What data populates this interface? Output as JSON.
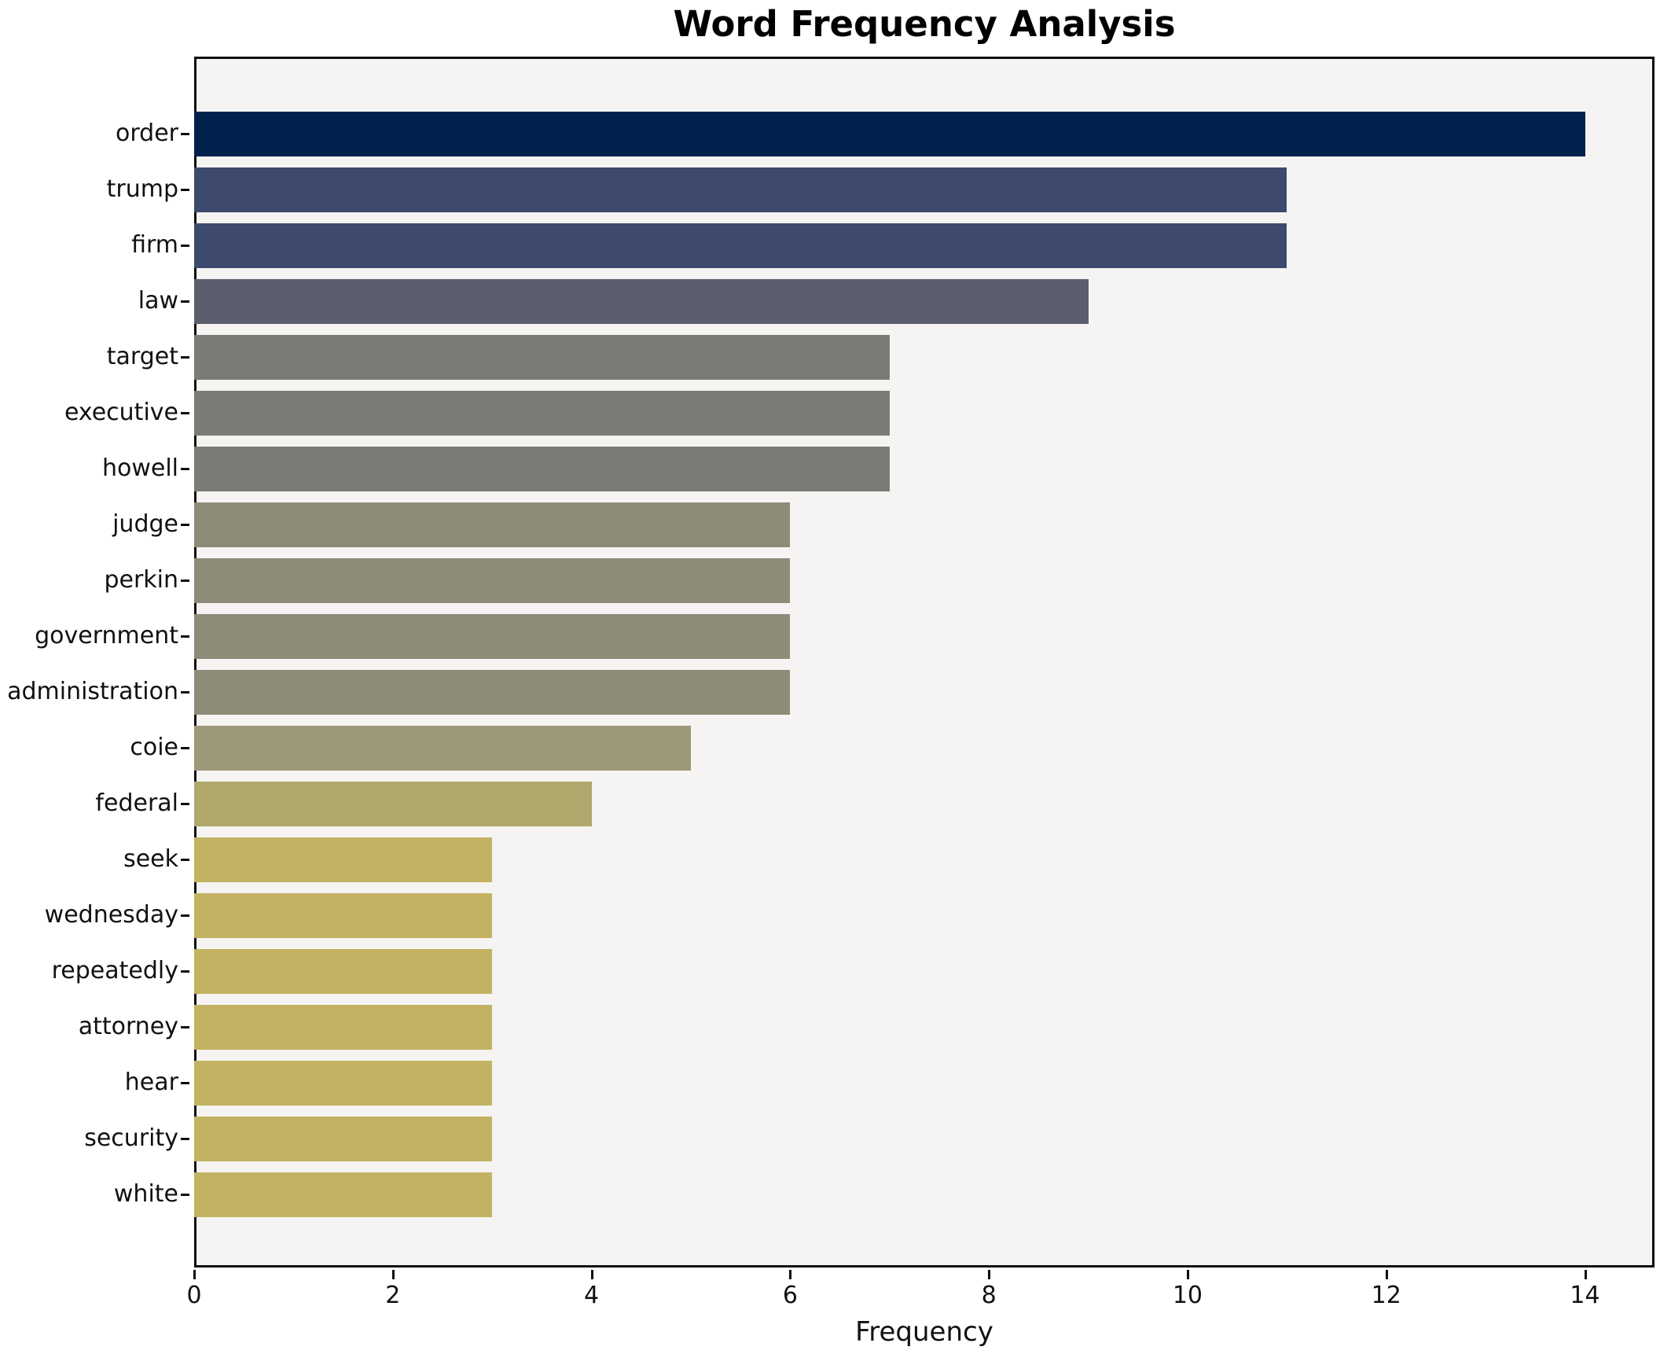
{
  "chart_data": {
    "type": "bar",
    "orientation": "horizontal",
    "title": "Word Frequency Analysis",
    "xlabel": "Frequency",
    "ylabel": "",
    "categories": [
      "order",
      "trump",
      "firm",
      "law",
      "target",
      "executive",
      "howell",
      "judge",
      "perkin",
      "government",
      "administration",
      "coie",
      "federal",
      "seek",
      "wednesday",
      "repeatedly",
      "attorney",
      "hear",
      "security",
      "white"
    ],
    "values": [
      14,
      11,
      11,
      9,
      7,
      7,
      7,
      6,
      6,
      6,
      6,
      5,
      4,
      3,
      3,
      3,
      3,
      3,
      3,
      3
    ],
    "bar_colors": [
      "#02214d",
      "#3d4a6d",
      "#3d4a6d",
      "#5b5f6d",
      "#7b7a74",
      "#7b7a74",
      "#7b7a74",
      "#8f8b79",
      "#8f8b79",
      "#8f8b79",
      "#8f8b79",
      "#9d9878",
      "#b0a76c",
      "#c3b262",
      "#c3b262",
      "#c3b262",
      "#c3b262",
      "#c3b262",
      "#c3b262",
      "#c3b262"
    ],
    "xticks": [
      "0",
      "2",
      "4",
      "6",
      "8",
      "10",
      "12",
      "14"
    ],
    "xtick_values": [
      0,
      2,
      4,
      6,
      8,
      10,
      12,
      14
    ],
    "xlim": [
      0,
      14.7
    ],
    "grid": false,
    "legend": "none",
    "plot_background": "#f5f4f2",
    "figure_background": "#ffffff",
    "axis_color": "#0d0d0d"
  }
}
